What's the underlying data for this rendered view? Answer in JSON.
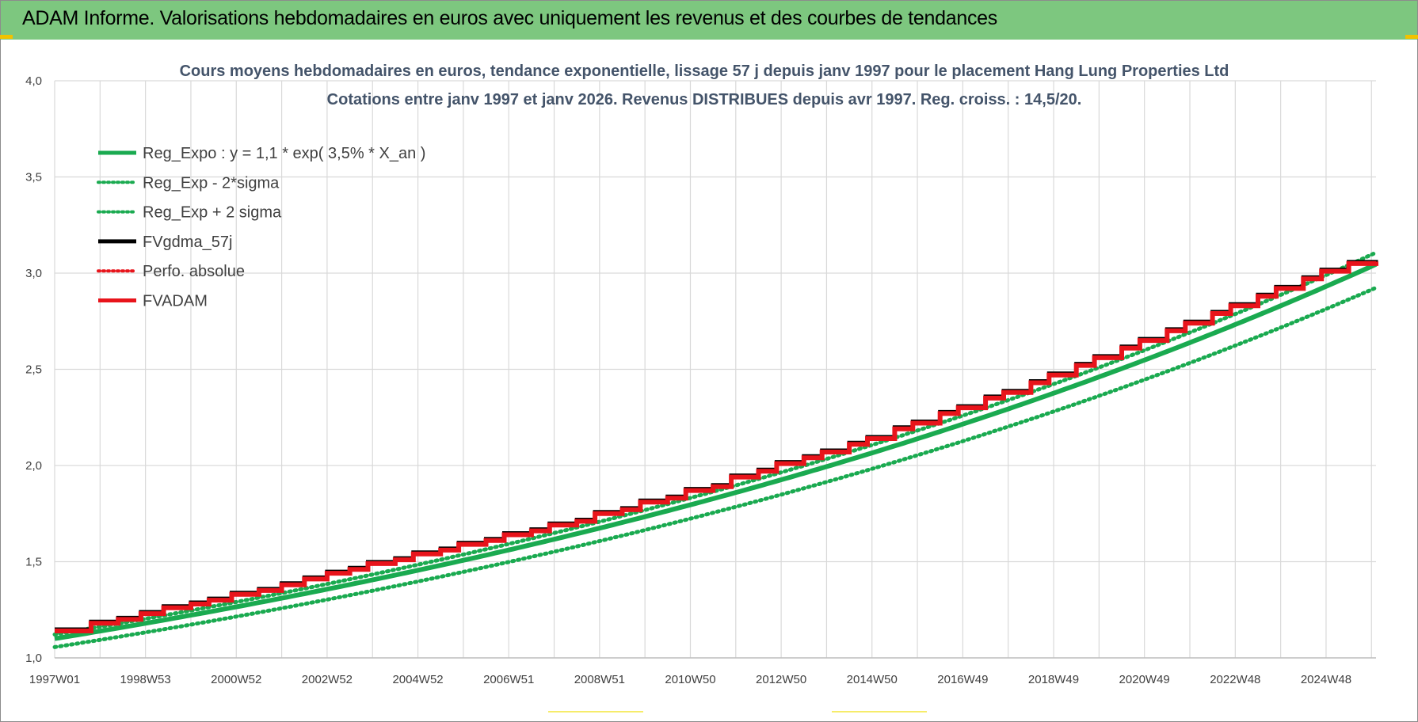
{
  "banner": {
    "title": "ADAM Informe. Valorisations hebdomadaires en euros avec uniquement les revenus et des courbes de tendances"
  },
  "colors": {
    "banner_bg": "#7dc77f",
    "trend_green": "#1aaa50",
    "series_red": "#e8141b",
    "series_black": "#000000",
    "grid": "#d9d9d9",
    "title_text": "#44546a"
  },
  "chart_data": {
    "type": "line",
    "title": "Cours moyens hebdomadaires en euros, tendance exponentielle, lissage 57 j depuis janv 1997  pour le placement Hang Lung Properties Ltd",
    "subtitle": "Cotations entre janv 1997 et janv 2026. Revenus DISTRIBUES depuis avr 1997.  Reg. croiss. : 14,5/20.",
    "xlabel": "",
    "ylabel": "",
    "ylim": [
      1.0,
      4.0
    ],
    "y_ticks": [
      "1,0",
      "1,5",
      "2,0",
      "2,5",
      "3,0",
      "3,5",
      "4,0"
    ],
    "xlim": [
      1997.0,
      2026.1
    ],
    "x_ticks": [
      "1997W01",
      "1998W53",
      "2000W52",
      "2002W52",
      "2004W52",
      "2006W51",
      "2008W51",
      "2010W50",
      "2012W50",
      "2014W50",
      "2016W49",
      "2018W49",
      "2020W49",
      "2022W48",
      "2024W48"
    ],
    "grid": true,
    "legend_position": "top-left",
    "regression": {
      "a": 1.1,
      "rate": 0.035,
      "sigma_band": 0.05
    },
    "series": [
      {
        "name": "Reg_Expo : y = 1,1 * exp( 3,5% *  X_an )",
        "color": "#1aaa50",
        "style": "solid"
      },
      {
        "name": "Reg_Exp - 2*sigma",
        "color": "#1aaa50",
        "style": "dotted"
      },
      {
        "name": "Reg_Exp + 2 sigma",
        "color": "#1aaa50",
        "style": "dotted"
      },
      {
        "name": "FVgdma_57j",
        "color": "#000000",
        "style": "solid"
      },
      {
        "name": "Perfo. absolue",
        "color": "#e8141b",
        "style": "dotted"
      },
      {
        "name": "FVADAM",
        "color": "#e8141b",
        "style": "solid"
      }
    ],
    "fvadam_steps": [
      {
        "x": 1997.0,
        "y": 1.14
      },
      {
        "x": 1997.8,
        "y": 1.18
      },
      {
        "x": 1998.4,
        "y": 1.2
      },
      {
        "x": 1998.9,
        "y": 1.23
      },
      {
        "x": 1999.4,
        "y": 1.26
      },
      {
        "x": 2000.0,
        "y": 1.28
      },
      {
        "x": 2000.4,
        "y": 1.3
      },
      {
        "x": 2000.9,
        "y": 1.33
      },
      {
        "x": 2001.5,
        "y": 1.35
      },
      {
        "x": 2002.0,
        "y": 1.38
      },
      {
        "x": 2002.5,
        "y": 1.41
      },
      {
        "x": 2003.0,
        "y": 1.44
      },
      {
        "x": 2003.5,
        "y": 1.46
      },
      {
        "x": 2003.9,
        "y": 1.49
      },
      {
        "x": 2004.5,
        "y": 1.51
      },
      {
        "x": 2004.9,
        "y": 1.54
      },
      {
        "x": 2005.5,
        "y": 1.56
      },
      {
        "x": 2005.9,
        "y": 1.59
      },
      {
        "x": 2006.5,
        "y": 1.61
      },
      {
        "x": 2006.9,
        "y": 1.64
      },
      {
        "x": 2007.5,
        "y": 1.66
      },
      {
        "x": 2007.9,
        "y": 1.69
      },
      {
        "x": 2008.5,
        "y": 1.71
      },
      {
        "x": 2008.9,
        "y": 1.75
      },
      {
        "x": 2009.5,
        "y": 1.77
      },
      {
        "x": 2009.9,
        "y": 1.81
      },
      {
        "x": 2010.5,
        "y": 1.83
      },
      {
        "x": 2010.9,
        "y": 1.87
      },
      {
        "x": 2011.5,
        "y": 1.89
      },
      {
        "x": 2011.9,
        "y": 1.94
      },
      {
        "x": 2012.5,
        "y": 1.97
      },
      {
        "x": 2012.9,
        "y": 2.01
      },
      {
        "x": 2013.5,
        "y": 2.04
      },
      {
        "x": 2013.9,
        "y": 2.07
      },
      {
        "x": 2014.5,
        "y": 2.11
      },
      {
        "x": 2014.9,
        "y": 2.14
      },
      {
        "x": 2015.5,
        "y": 2.19
      },
      {
        "x": 2015.9,
        "y": 2.22
      },
      {
        "x": 2016.5,
        "y": 2.27
      },
      {
        "x": 2016.9,
        "y": 2.3
      },
      {
        "x": 2017.5,
        "y": 2.35
      },
      {
        "x": 2017.9,
        "y": 2.38
      },
      {
        "x": 2018.5,
        "y": 2.43
      },
      {
        "x": 2018.9,
        "y": 2.47
      },
      {
        "x": 2019.5,
        "y": 2.52
      },
      {
        "x": 2019.9,
        "y": 2.56
      },
      {
        "x": 2020.5,
        "y": 2.61
      },
      {
        "x": 2020.9,
        "y": 2.65
      },
      {
        "x": 2021.5,
        "y": 2.7
      },
      {
        "x": 2021.9,
        "y": 2.74
      },
      {
        "x": 2022.5,
        "y": 2.79
      },
      {
        "x": 2022.9,
        "y": 2.83
      },
      {
        "x": 2023.5,
        "y": 2.88
      },
      {
        "x": 2023.9,
        "y": 2.92
      },
      {
        "x": 2024.5,
        "y": 2.97
      },
      {
        "x": 2024.9,
        "y": 3.01
      },
      {
        "x": 2025.5,
        "y": 3.05
      },
      {
        "x": 2026.1,
        "y": 3.06
      }
    ]
  }
}
